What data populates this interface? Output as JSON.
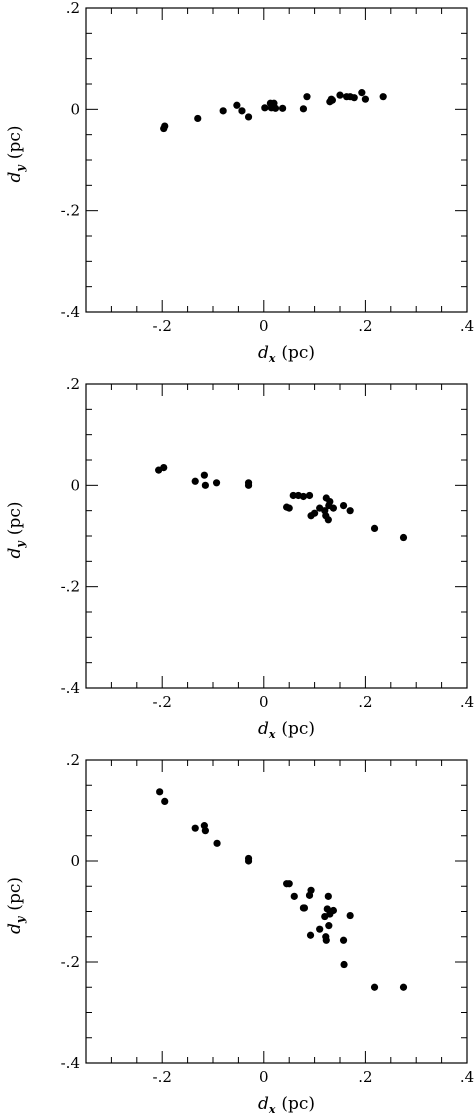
{
  "chart_data": [
    {
      "type": "scatter",
      "panel": "top",
      "xlabel_sym": "d",
      "xlabel_sub": "x",
      "xlabel_unit": "(pc)",
      "ylabel_sym": "d",
      "ylabel_sub": "y",
      "ylabel_unit": "(pc)",
      "xlim": [
        -0.35,
        0.4
      ],
      "ylim": [
        -0.4,
        0.2
      ],
      "xticks": [
        {
          "v": -0.2,
          "label": "-.2"
        },
        {
          "v": 0,
          "label": "0"
        },
        {
          "v": 0.2,
          "label": ".2"
        },
        {
          "v": 0.4,
          "label": ".4"
        }
      ],
      "yticks": [
        {
          "v": 0.2,
          "label": ".2"
        },
        {
          "v": 0,
          "label": "0"
        },
        {
          "v": -0.2,
          "label": "-.2"
        },
        {
          "v": -0.4,
          "label": "-.4"
        }
      ],
      "points": [
        [
          -0.195,
          -0.033
        ],
        [
          -0.197,
          -0.038
        ],
        [
          -0.13,
          -0.018
        ],
        [
          -0.08,
          -0.003
        ],
        [
          -0.053,
          0.008
        ],
        [
          -0.043,
          -0.003
        ],
        [
          -0.03,
          -0.015
        ],
        [
          0.002,
          0.003
        ],
        [
          0.013,
          0.012
        ],
        [
          0.015,
          0.003
        ],
        [
          0.02,
          0.012
        ],
        [
          0.023,
          0.002
        ],
        [
          0.037,
          0.002
        ],
        [
          0.078,
          0.001
        ],
        [
          0.085,
          0.025
        ],
        [
          0.13,
          0.015
        ],
        [
          0.133,
          0.02
        ],
        [
          0.135,
          0.018
        ],
        [
          0.15,
          0.028
        ],
        [
          0.163,
          0.025
        ],
        [
          0.17,
          0.025
        ],
        [
          0.178,
          0.023
        ],
        [
          0.193,
          0.033
        ],
        [
          0.2,
          0.02
        ],
        [
          0.235,
          0.025
        ]
      ]
    },
    {
      "type": "scatter",
      "panel": "middle",
      "xlabel_sym": "d",
      "xlabel_sub": "x",
      "xlabel_unit": "(pc)",
      "ylabel_sym": "d",
      "ylabel_sub": "y",
      "ylabel_unit": "(pc)",
      "xlim": [
        -0.35,
        0.4
      ],
      "ylim": [
        -0.4,
        0.2
      ],
      "xticks": [
        {
          "v": -0.2,
          "label": "-.2"
        },
        {
          "v": 0,
          "label": "0"
        },
        {
          "v": 0.2,
          "label": ".2"
        },
        {
          "v": 0.4,
          "label": ".4"
        }
      ],
      "yticks": [
        {
          "v": 0.2,
          "label": ".2"
        },
        {
          "v": 0,
          "label": "0"
        },
        {
          "v": -0.2,
          "label": "-.2"
        },
        {
          "v": -0.4,
          "label": "-.4"
        }
      ],
      "points": [
        [
          -0.207,
          0.03
        ],
        [
          -0.197,
          0.035
        ],
        [
          -0.135,
          0.008
        ],
        [
          -0.117,
          0.02
        ],
        [
          -0.115,
          0.0
        ],
        [
          -0.093,
          0.005
        ],
        [
          -0.03,
          0.005
        ],
        [
          -0.03,
          0.0
        ],
        [
          0.045,
          -0.043
        ],
        [
          0.05,
          -0.045
        ],
        [
          0.058,
          -0.02
        ],
        [
          0.068,
          -0.02
        ],
        [
          0.078,
          -0.022
        ],
        [
          0.09,
          -0.02
        ],
        [
          0.093,
          -0.06
        ],
        [
          0.1,
          -0.055
        ],
        [
          0.11,
          -0.045
        ],
        [
          0.12,
          -0.05
        ],
        [
          0.122,
          -0.06
        ],
        [
          0.123,
          -0.025
        ],
        [
          0.127,
          -0.068
        ],
        [
          0.128,
          -0.04
        ],
        [
          0.13,
          -0.032
        ],
        [
          0.137,
          -0.045
        ],
        [
          0.157,
          -0.04
        ],
        [
          0.17,
          -0.05
        ],
        [
          0.218,
          -0.085
        ],
        [
          0.275,
          -0.103
        ]
      ]
    },
    {
      "type": "scatter",
      "panel": "bottom",
      "xlabel_sym": "d",
      "xlabel_sub": "x",
      "xlabel_unit": "(pc)",
      "ylabel_sym": "d",
      "ylabel_sub": "y",
      "ylabel_unit": "(pc)",
      "xlim": [
        -0.35,
        0.4
      ],
      "ylim": [
        -0.4,
        0.2
      ],
      "xticks": [
        {
          "v": -0.2,
          "label": "-.2"
        },
        {
          "v": 0,
          "label": "0"
        },
        {
          "v": 0.2,
          "label": ".2"
        },
        {
          "v": 0.4,
          "label": ".4"
        }
      ],
      "yticks": [
        {
          "v": 0.2,
          "label": ".2"
        },
        {
          "v": 0,
          "label": "0"
        },
        {
          "v": -0.2,
          "label": "-.2"
        },
        {
          "v": -0.4,
          "label": "-.4"
        }
      ],
      "points": [
        [
          -0.205,
          0.137
        ],
        [
          -0.195,
          0.118
        ],
        [
          -0.135,
          0.065
        ],
        [
          -0.117,
          0.07
        ],
        [
          -0.115,
          0.06
        ],
        [
          -0.092,
          0.035
        ],
        [
          -0.03,
          0.005
        ],
        [
          -0.03,
          0.0
        ],
        [
          0.045,
          -0.045
        ],
        [
          0.05,
          -0.045
        ],
        [
          0.06,
          -0.07
        ],
        [
          0.078,
          -0.093
        ],
        [
          0.08,
          -0.093
        ],
        [
          0.09,
          -0.068
        ],
        [
          0.093,
          -0.058
        ],
        [
          0.092,
          -0.147
        ],
        [
          0.11,
          -0.135
        ],
        [
          0.12,
          -0.11
        ],
        [
          0.122,
          -0.15
        ],
        [
          0.123,
          -0.157
        ],
        [
          0.125,
          -0.095
        ],
        [
          0.127,
          -0.07
        ],
        [
          0.128,
          -0.128
        ],
        [
          0.13,
          -0.105
        ],
        [
          0.137,
          -0.098
        ],
        [
          0.157,
          -0.157
        ],
        [
          0.158,
          -0.205
        ],
        [
          0.17,
          -0.108
        ],
        [
          0.218,
          -0.25
        ],
        [
          0.275,
          -0.25
        ]
      ]
    }
  ]
}
